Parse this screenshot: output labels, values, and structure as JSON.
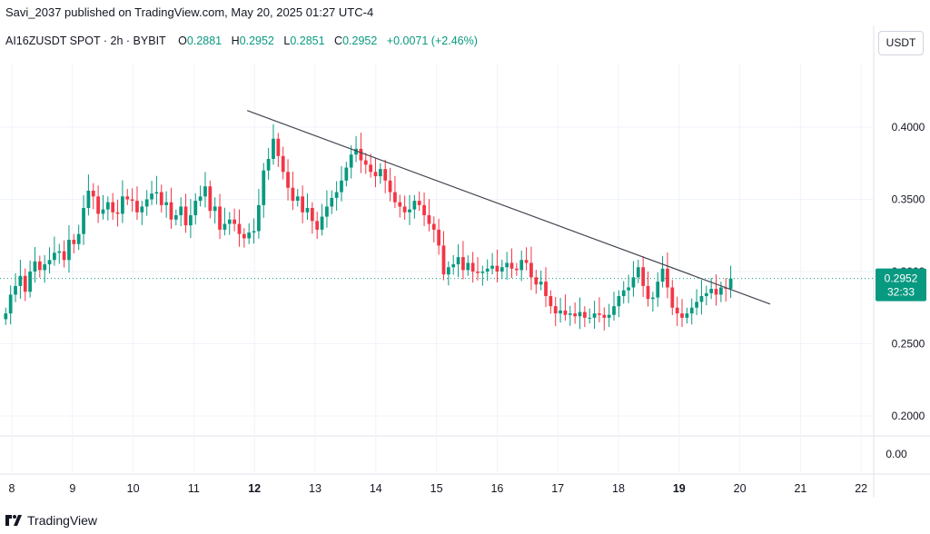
{
  "header": {
    "published": "Savi_2037 published on TradingView.com, May 20, 2025 01:27 UTC-4"
  },
  "legend": {
    "symbol": "AI16ZUSDT SPOT · 2h · BYBIT",
    "open_label": "O",
    "open": "0.2881",
    "high_label": "H",
    "high": "0.2952",
    "low_label": "L",
    "low": "0.2851",
    "close_label": "C",
    "close": "0.2952",
    "change": "+0.0071 (+2.46%)"
  },
  "toolbar": {
    "unit": "USDT"
  },
  "footer": {
    "brand": "TradingView"
  },
  "colors": {
    "up": "#089981",
    "down": "#f23645",
    "grid": "#f0f3fa",
    "trendline": "#434651"
  },
  "chart_data": {
    "type": "candlestick",
    "price_axis": {
      "ticks": [
        "0.4000",
        "0.3500",
        "0.3000",
        "0.2500",
        "0.2000"
      ],
      "min": 0.195,
      "max": 0.43
    },
    "oscillator_axis": {
      "ticks": [
        "0.00"
      ]
    },
    "x_ticks": [
      "8",
      "9",
      "10",
      "11",
      "12",
      "13",
      "14",
      "15",
      "16",
      "17",
      "18",
      "19",
      "20",
      "21",
      "22"
    ],
    "last_price": "0.2952",
    "countdown": "32:33",
    "trendline": {
      "start": {
        "day": 12.0,
        "price": 0.4115
      },
      "end": {
        "day": 20.5,
        "price": 0.2775
      }
    },
    "closes": [
      0.271,
      0.284,
      0.29,
      0.297,
      0.286,
      0.3,
      0.307,
      0.301,
      0.305,
      0.308,
      0.313,
      0.314,
      0.308,
      0.322,
      0.319,
      0.326,
      0.344,
      0.356,
      0.352,
      0.34,
      0.343,
      0.348,
      0.341,
      0.34,
      0.352,
      0.35,
      0.349,
      0.341,
      0.345,
      0.35,
      0.354,
      0.355,
      0.346,
      0.348,
      0.336,
      0.339,
      0.345,
      0.332,
      0.339,
      0.349,
      0.352,
      0.359,
      0.342,
      0.345,
      0.329,
      0.333,
      0.336,
      0.333,
      0.326,
      0.323,
      0.327,
      0.328,
      0.346,
      0.37,
      0.378,
      0.392,
      0.38,
      0.369,
      0.358,
      0.349,
      0.352,
      0.341,
      0.344,
      0.335,
      0.329,
      0.338,
      0.345,
      0.351,
      0.355,
      0.363,
      0.372,
      0.381,
      0.385,
      0.377,
      0.374,
      0.369,
      0.366,
      0.371,
      0.363,
      0.355,
      0.348,
      0.345,
      0.341,
      0.343,
      0.349,
      0.346,
      0.339,
      0.333,
      0.329,
      0.318,
      0.298,
      0.303,
      0.305,
      0.31,
      0.301,
      0.306,
      0.3,
      0.299,
      0.3,
      0.302,
      0.304,
      0.3,
      0.303,
      0.306,
      0.302,
      0.301,
      0.308,
      0.306,
      0.296,
      0.291,
      0.293,
      0.283,
      0.276,
      0.271,
      0.273,
      0.27,
      0.271,
      0.269,
      0.272,
      0.268,
      0.268,
      0.271,
      0.27,
      0.268,
      0.27,
      0.276,
      0.283,
      0.287,
      0.289,
      0.296,
      0.303,
      0.29,
      0.281,
      0.282,
      0.293,
      0.302,
      0.289,
      0.275,
      0.271,
      0.268,
      0.271,
      0.275,
      0.279,
      0.283,
      0.285,
      0.288,
      0.284,
      0.289,
      0.2881,
      0.2952
    ]
  }
}
